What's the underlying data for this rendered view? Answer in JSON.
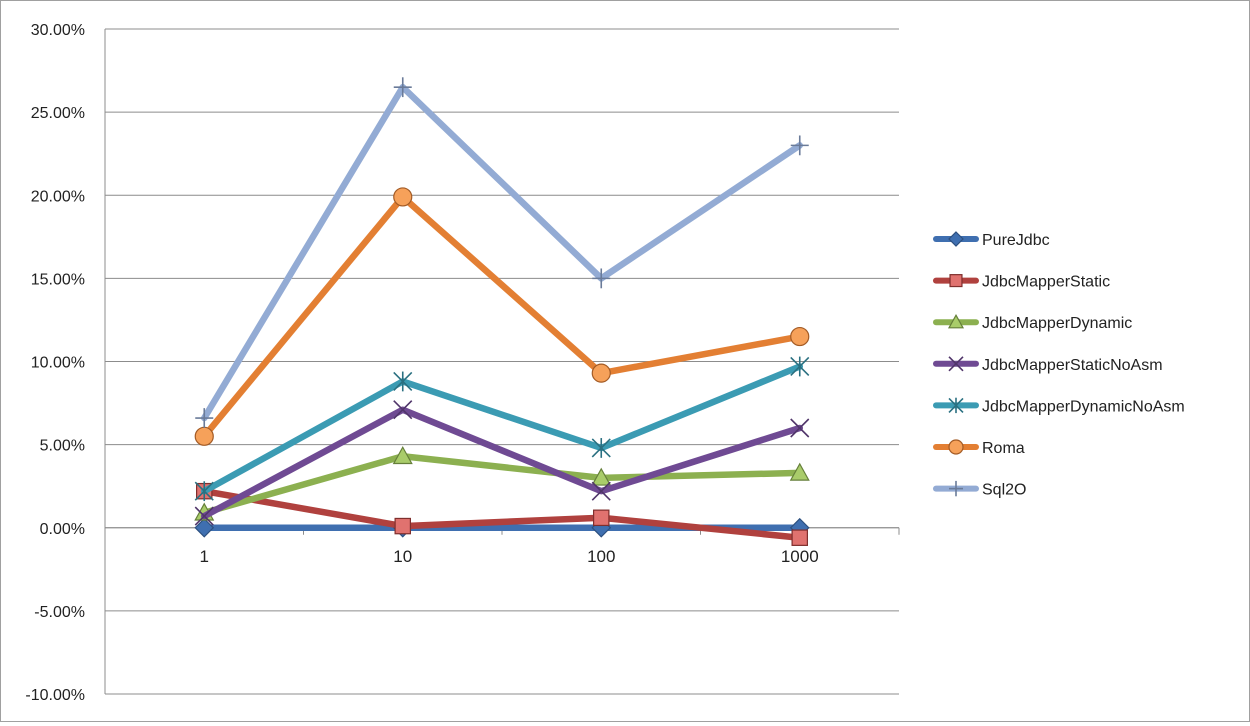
{
  "chart_data": {
    "type": "line",
    "title": "",
    "xlabel": "",
    "ylabel": "",
    "categories": [
      "1",
      "10",
      "100",
      "1000"
    ],
    "ylim": [
      -0.1,
      0.3
    ],
    "ytick_values": [
      -0.1,
      -0.05,
      0.0,
      0.05,
      0.1,
      0.15,
      0.2,
      0.25,
      0.3
    ],
    "ytick_labels": [
      "-10.00%",
      "-5.00%",
      "0.00%",
      "5.00%",
      "10.00%",
      "15.00%",
      "20.00%",
      "25.00%",
      "30.00%"
    ],
    "grid": true,
    "legend_position": "right",
    "series": [
      {
        "name": "PureJdbc",
        "color": "#3f6fb0",
        "marker": "diamond",
        "values": [
          0.0,
          0.0,
          0.0,
          0.0
        ]
      },
      {
        "name": "JdbcMapperStatic",
        "color": "#b0413e",
        "marker": "square",
        "values": [
          0.022,
          0.001,
          0.006,
          -0.006
        ]
      },
      {
        "name": "JdbcMapperDynamic",
        "color": "#8cb050",
        "marker": "triangle",
        "values": [
          0.009,
          0.043,
          0.03,
          0.033
        ]
      },
      {
        "name": "JdbcMapperStaticNoAsm",
        "color": "#6f4a93",
        "marker": "x",
        "values": [
          0.007,
          0.071,
          0.022,
          0.06
        ]
      },
      {
        "name": "JdbcMapperDynamicNoAsm",
        "color": "#3b9bb3",
        "marker": "asterisk",
        "values": [
          0.022,
          0.088,
          0.048,
          0.097
        ]
      },
      {
        "name": "Roma",
        "color": "#e37f33",
        "marker": "circle",
        "values": [
          0.055,
          0.199,
          0.093,
          0.115
        ]
      },
      {
        "name": "Sql2O",
        "color": "#93abd4",
        "marker": "plus",
        "values": [
          0.066,
          0.265,
          0.15,
          0.23
        ]
      }
    ]
  }
}
